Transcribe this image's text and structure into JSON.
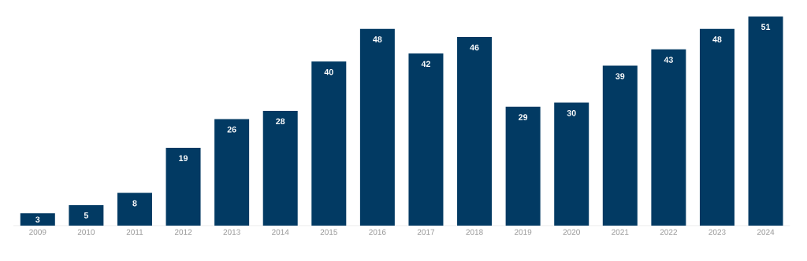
{
  "chart_data": {
    "type": "bar",
    "categories": [
      "2009",
      "2010",
      "2011",
      "2012",
      "2013",
      "2014",
      "2015",
      "2016",
      "2017",
      "2018",
      "2019",
      "2020",
      "2021",
      "2022",
      "2023",
      "2024"
    ],
    "values": [
      3,
      5,
      8,
      19,
      26,
      28,
      40,
      48,
      42,
      46,
      29,
      30,
      39,
      43,
      48,
      51
    ],
    "color": "#023a63",
    "data_labels": true
  }
}
